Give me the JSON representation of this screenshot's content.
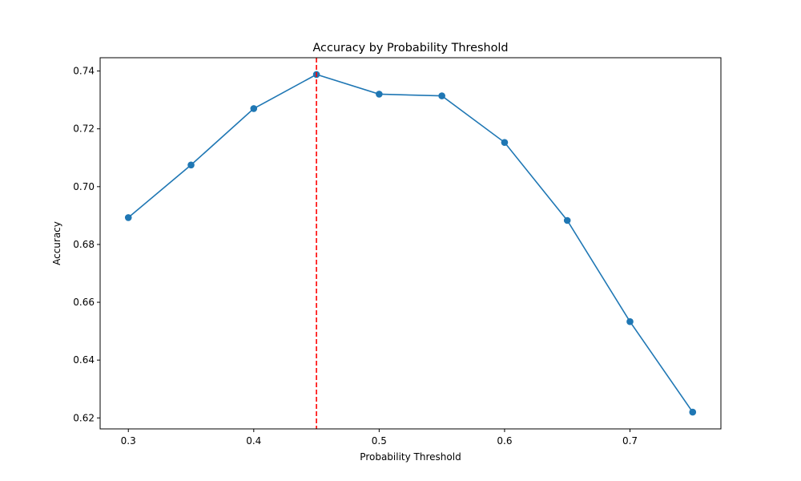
{
  "chart_data": {
    "type": "line",
    "title": "Accuracy by Probability Threshold",
    "xlabel": "Probability Threshold",
    "ylabel": "Accuracy",
    "x": [
      0.3,
      0.35,
      0.4,
      0.45,
      0.5,
      0.55,
      0.6,
      0.65,
      0.7,
      0.75
    ],
    "series": [
      {
        "values": [
          0.6893,
          0.7075,
          0.727,
          0.7388,
          0.732,
          0.7314,
          0.7153,
          0.6883,
          0.6533,
          0.622
        ],
        "color": "#1f77b4",
        "marker": "circle"
      }
    ],
    "reference_line": {
      "x": 0.45,
      "color": "#ff0000",
      "style": "dashed"
    },
    "xlim": [
      0.2775,
      0.7725
    ],
    "ylim": [
      0.6162,
      0.7446
    ],
    "xticks": [
      0.3,
      0.4,
      0.5,
      0.6,
      0.7
    ],
    "xtick_labels": [
      "0.3",
      "0.4",
      "0.5",
      "0.6",
      "0.7"
    ],
    "yticks": [
      0.62,
      0.64,
      0.66,
      0.68,
      0.7,
      0.72,
      0.74
    ],
    "ytick_labels": [
      "0.62",
      "0.64",
      "0.66",
      "0.68",
      "0.70",
      "0.72",
      "0.74"
    ],
    "grid": false,
    "legend": false
  }
}
